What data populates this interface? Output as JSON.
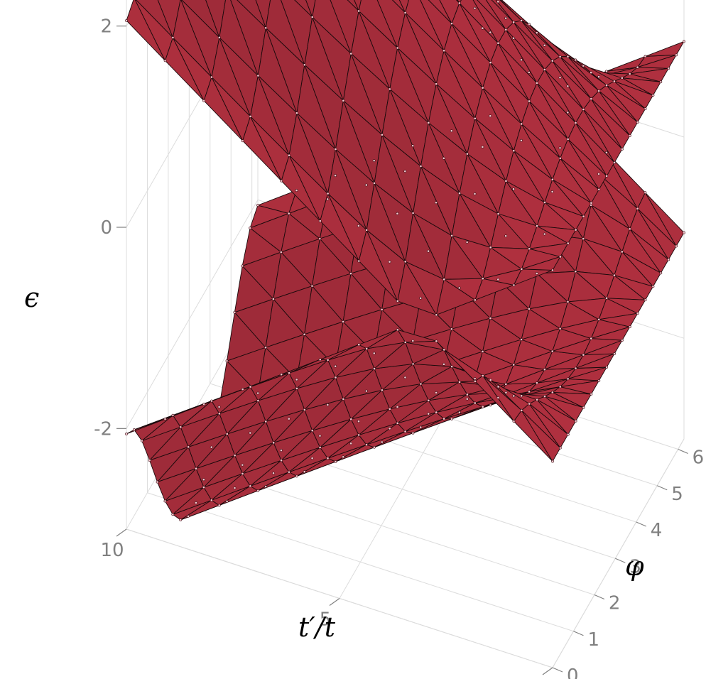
{
  "chart_data": {
    "type": "surface3d",
    "xlabel": "t′/t",
    "ylabel": "φ",
    "zlabel": "ϵ",
    "x_ticks": [
      "0",
      "5",
      "10"
    ],
    "y_ticks": [
      "0",
      "1",
      "2",
      "3",
      "4",
      "5",
      "6"
    ],
    "z_ticks": [
      "-2",
      "0",
      "2"
    ],
    "x_range": [
      0,
      10
    ],
    "y_range": [
      0,
      6.283
    ],
    "z_range": [
      -3,
      3
    ],
    "grid": true,
    "surface_color": "#b0303f",
    "mesh_color": "#1a0a0c",
    "surfaces": [
      {
        "name": "",
        "formula": "+sqrt(1 + x^2/10 - 2*(x/sqrt(10))*cos(y)) * 0.95"
      },
      {
        "name": "",
        "formula": "-sqrt(1 + x^2/10 - 2*(x/sqrt(10))*cos(y)) * 0.95"
      }
    ]
  }
}
